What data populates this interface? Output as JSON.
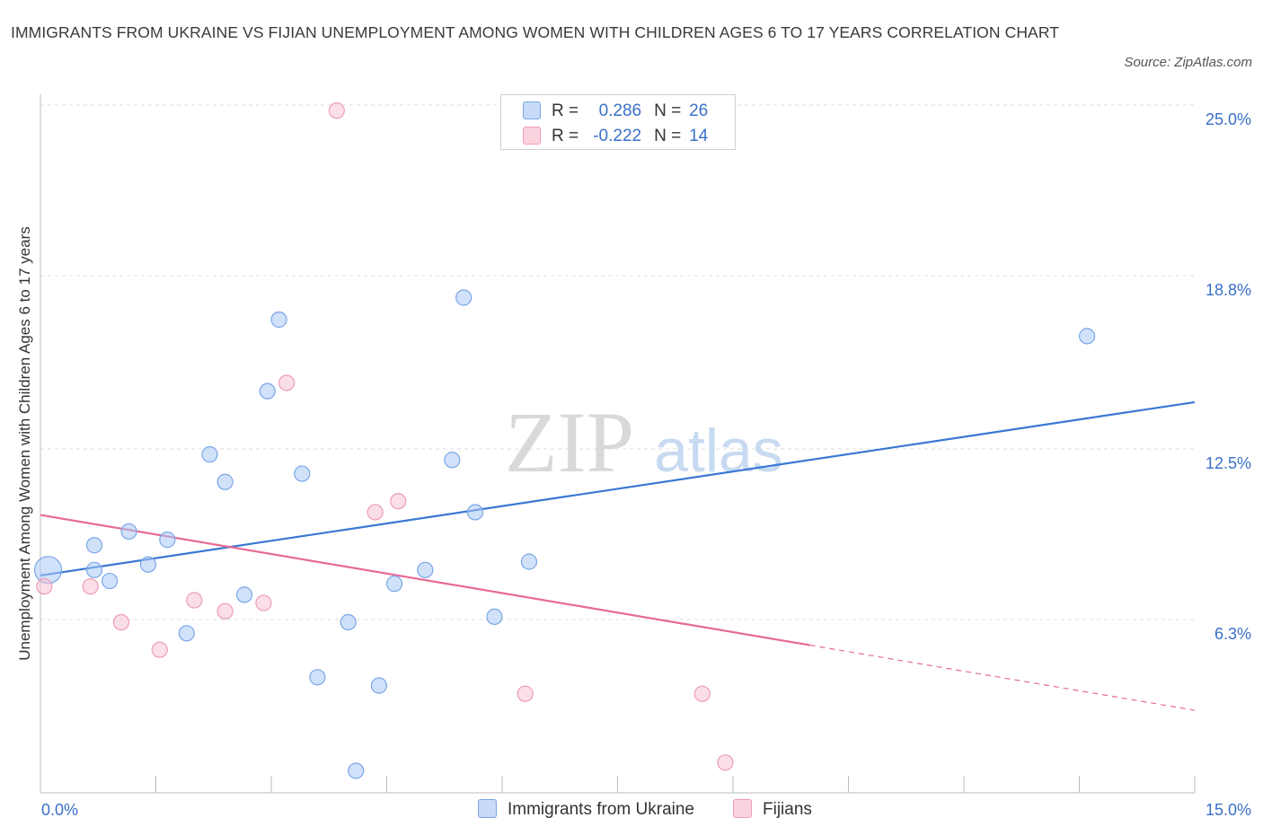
{
  "header": {
    "title": "IMMIGRANTS FROM UKRAINE VS FIJIAN UNEMPLOYMENT AMONG WOMEN WITH CHILDREN AGES 6 TO 17 YEARS CORRELATION CHART",
    "source": "Source: ZipAtlas.com"
  },
  "watermark": {
    "zip": "ZIP",
    "atlas": "atlas"
  },
  "legend": {
    "rows": [
      {
        "r_label": "R =",
        "r_value": "0.286",
        "n_label": "N =",
        "n_value": "26",
        "color": "#a9c8f5",
        "border": "#7aa6e6"
      },
      {
        "r_label": "R =",
        "r_value": "-0.222",
        "n_label": "N =",
        "n_value": "14",
        "color": "#f8c4d3",
        "border": "#ee9bb4"
      }
    ]
  },
  "chart_data": {
    "type": "scatter",
    "title": "IMMIGRANTS FROM UKRAINE VS FIJIAN UNEMPLOYMENT AMONG WOMEN WITH CHILDREN AGES 6 TO 17 YEARS CORRELATION CHART",
    "xlabel": "",
    "ylabel": "Unemployment Among Women with Children Ages 6 to 17 years",
    "xlim": [
      0,
      15
    ],
    "ylim": [
      0,
      25
    ],
    "x_tick_labels": [
      {
        "value": 0,
        "label": "0.0%"
      },
      {
        "value": 15,
        "label": "15.0%"
      }
    ],
    "y_tick_labels": [
      {
        "value": 6.3,
        "label": "6.3%"
      },
      {
        "value": 12.5,
        "label": "12.5%"
      },
      {
        "value": 18.8,
        "label": "18.8%"
      },
      {
        "value": 25.0,
        "label": "25.0%"
      }
    ],
    "grid": true,
    "series": [
      {
        "name": "Immigrants from Ukraine",
        "color": "#a9c8f5",
        "stroke": "#7aa6e6",
        "line_color": "#3a78d4",
        "trend": {
          "x0": 0,
          "y0": 7.9,
          "x1": 15,
          "y1": 14.2,
          "solid_until": 15
        },
        "points": [
          {
            "x": 0.1,
            "y": 8.1,
            "big": true
          },
          {
            "x": 0.7,
            "y": 8.1
          },
          {
            "x": 0.7,
            "y": 9.0
          },
          {
            "x": 0.9,
            "y": 7.7
          },
          {
            "x": 1.15,
            "y": 9.5
          },
          {
            "x": 1.4,
            "y": 8.3
          },
          {
            "x": 1.65,
            "y": 9.2
          },
          {
            "x": 1.9,
            "y": 5.8
          },
          {
            "x": 2.2,
            "y": 12.3
          },
          {
            "x": 2.4,
            "y": 11.3
          },
          {
            "x": 2.65,
            "y": 7.2
          },
          {
            "x": 2.95,
            "y": 14.6
          },
          {
            "x": 3.1,
            "y": 17.2
          },
          {
            "x": 3.4,
            "y": 11.6
          },
          {
            "x": 3.6,
            "y": 4.2
          },
          {
            "x": 4.0,
            "y": 6.2
          },
          {
            "x": 4.1,
            "y": 0.8
          },
          {
            "x": 4.4,
            "y": 3.9
          },
          {
            "x": 4.6,
            "y": 7.6
          },
          {
            "x": 5.0,
            "y": 8.1
          },
          {
            "x": 5.35,
            "y": 12.1
          },
          {
            "x": 5.5,
            "y": 18.0
          },
          {
            "x": 5.65,
            "y": 10.2
          },
          {
            "x": 5.9,
            "y": 6.4
          },
          {
            "x": 6.35,
            "y": 8.4
          },
          {
            "x": 13.6,
            "y": 16.6
          }
        ]
      },
      {
        "name": "Fijians",
        "color": "#f8c4d3",
        "stroke": "#ee9bb4",
        "line_color": "#e66b96",
        "trend": {
          "x0": 0,
          "y0": 10.1,
          "x1": 15,
          "y1": 3.0,
          "solid_until": 10.0
        },
        "points": [
          {
            "x": 0.05,
            "y": 7.5
          },
          {
            "x": 0.65,
            "y": 7.5
          },
          {
            "x": 1.05,
            "y": 6.2
          },
          {
            "x": 1.55,
            "y": 5.2
          },
          {
            "x": 2.0,
            "y": 7.0
          },
          {
            "x": 2.4,
            "y": 6.6
          },
          {
            "x": 2.9,
            "y": 6.9
          },
          {
            "x": 3.2,
            "y": 14.9
          },
          {
            "x": 3.85,
            "y": 24.8
          },
          {
            "x": 4.35,
            "y": 10.2
          },
          {
            "x": 4.65,
            "y": 10.6
          },
          {
            "x": 6.3,
            "y": 3.6
          },
          {
            "x": 8.6,
            "y": 3.6
          },
          {
            "x": 8.9,
            "y": 1.1
          }
        ]
      }
    ]
  }
}
